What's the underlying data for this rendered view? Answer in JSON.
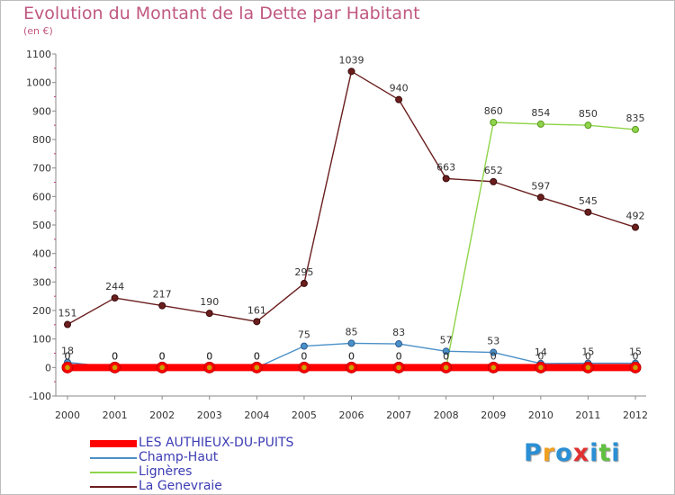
{
  "chart_data": {
    "type": "line",
    "title": "Evolution du Montant de la Dette par Habitant",
    "subtitle": "(en €)",
    "x": [
      "2000",
      "2001",
      "2002",
      "2003",
      "2004",
      "2005",
      "2006",
      "2007",
      "2008",
      "2009",
      "2010",
      "2011",
      "2012"
    ],
    "yticks": [
      -100,
      0,
      100,
      200,
      300,
      400,
      500,
      600,
      700,
      800,
      900,
      1000,
      1100
    ],
    "ylim": [
      -100,
      1100
    ],
    "grid": false,
    "legend_position": "bottom-left",
    "series": [
      {
        "name": "La Genevraie",
        "color": "#6b1e1e",
        "values": [
          151,
          244,
          217,
          190,
          161,
          295,
          1039,
          940,
          663,
          652,
          597,
          545,
          492
        ],
        "labels": [
          "151",
          "244",
          "217",
          "190",
          "161",
          "295",
          "1039",
          "940",
          "663",
          "652",
          "597",
          "545",
          "492"
        ]
      },
      {
        "name": "Lignères",
        "color": "#8fd44a",
        "values": [
          0,
          0,
          0,
          0,
          0,
          0,
          0,
          0,
          0,
          860,
          854,
          850,
          835
        ],
        "labels": [
          "0",
          "0",
          "0",
          "0",
          "0",
          "0",
          "0",
          "0",
          "0",
          "860",
          "854",
          "850",
          "835"
        ]
      },
      {
        "name": "Champ-Haut",
        "color": "#4a90c8",
        "values": [
          18,
          0,
          0,
          0,
          0,
          75,
          85,
          83,
          57,
          53,
          14,
          15,
          15
        ],
        "labels": [
          "18",
          "0",
          "0",
          "0",
          "0",
          "75",
          "85",
          "83",
          "57",
          "53",
          "14",
          "15",
          "15"
        ]
      },
      {
        "name": "LES AUTHIEUX-DU-PUITS",
        "color": "#ff0000",
        "values": [
          0,
          0,
          0,
          0,
          0,
          0,
          0,
          0,
          0,
          0,
          0,
          0,
          0
        ],
        "labels": [
          "0",
          "0",
          "0",
          "0",
          "0",
          "0",
          "0",
          "0",
          "0",
          "0",
          "0",
          "0",
          "0"
        ]
      }
    ],
    "legend": [
      "LES AUTHIEUX-DU-PUITS",
      "Champ-Haut",
      "Lignères",
      "La Genevraie"
    ]
  },
  "brand": {
    "letters": [
      "P",
      "r",
      "o",
      "x",
      "i",
      "t",
      "i"
    ],
    "colors": [
      "#2a8fd4",
      "#f0a020",
      "#2a8fd4",
      "#e03030",
      "#2a8fd4",
      "#60c040",
      "#2a8fd4"
    ]
  }
}
